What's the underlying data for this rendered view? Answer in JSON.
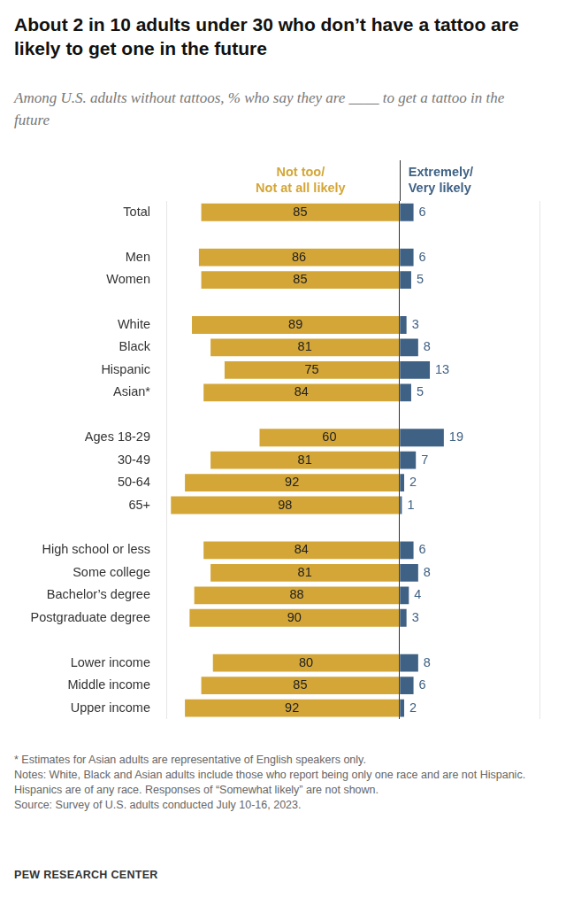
{
  "chart_data": {
    "type": "bar",
    "orientation": "horizontal",
    "title": "About 2 in 10 adults under 30 who don’t have a tattoo are likely to get one in the future",
    "subtitle": "Among U.S. adults without tattoos, % who say they are ____ to get a tattoo in the future",
    "notes": [
      "* Estimates for Asian adults are representative of English speakers only.",
      "Notes: White, Black and Asian adults include those who report being only one race and are not Hispanic. Hispanics are of any race. Responses of “Somewhat likely” are not shown.",
      "Source: Survey of U.S. adults conducted July 10-16, 2023."
    ],
    "credit": "PEW RESEARCH CENTER",
    "categories": [
      "Total",
      null,
      "Men",
      "Women",
      null,
      "White",
      "Black",
      "Hispanic",
      "Asian*",
      null,
      "Ages 18-29",
      "30-49",
      "50-64",
      "65+",
      null,
      "High school or less",
      "Some college",
      "Bachelor’s degree",
      "Postgraduate degree",
      null,
      "Lower income",
      "Middle income",
      "Upper income"
    ],
    "series": [
      {
        "name": "Not too/ Not at all likely",
        "color": "#d4a637",
        "values": [
          85,
          null,
          86,
          85,
          null,
          89,
          81,
          75,
          84,
          null,
          60,
          81,
          92,
          98,
          null,
          84,
          81,
          88,
          90,
          null,
          80,
          85,
          92
        ]
      },
      {
        "name": "Extremely/ Very likely",
        "color": "#3f6184",
        "axis": "x2",
        "values": [
          6,
          null,
          6,
          5,
          null,
          3,
          8,
          13,
          5,
          null,
          19,
          7,
          2,
          1,
          null,
          6,
          8,
          4,
          3,
          null,
          8,
          6,
          2
        ]
      }
    ],
    "xlim": [
      100,
      0
    ],
    "xticks": [
      0,
      100
    ],
    "x2lim": [
      0,
      60
    ],
    "x2ticks": [
      0,
      60
    ],
    "data_labels": true,
    "tick_labels": "y"
  }
}
